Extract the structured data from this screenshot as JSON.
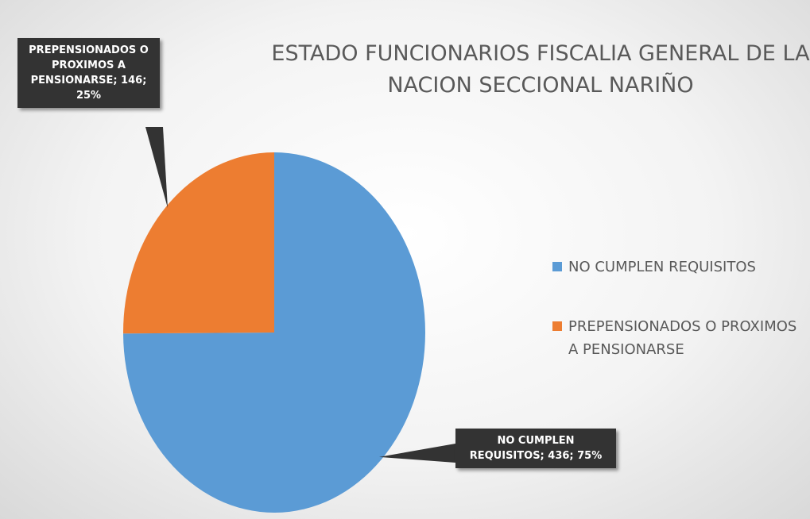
{
  "chart_data": {
    "type": "pie",
    "title": "ESTADO FUNCIONARIOS FISCALIA GENERAL DE LA NACION SECCIONAL NARIÑO",
    "categories": [
      "NO CUMPLEN REQUISITOS",
      "PREPENSIONADOS O PROXIMOS A PENSIONARSE"
    ],
    "values": [
      436,
      146
    ],
    "value_labels": [
      "NO CUMPLEN REQUISITOS; 436; 75%",
      "PREPENSIONADOS O PROXIMOS A PENSIONARSE; 146; 25%"
    ],
    "colors": [
      "#5b9bd5",
      "#ed7d31"
    ],
    "legend": "right"
  }
}
